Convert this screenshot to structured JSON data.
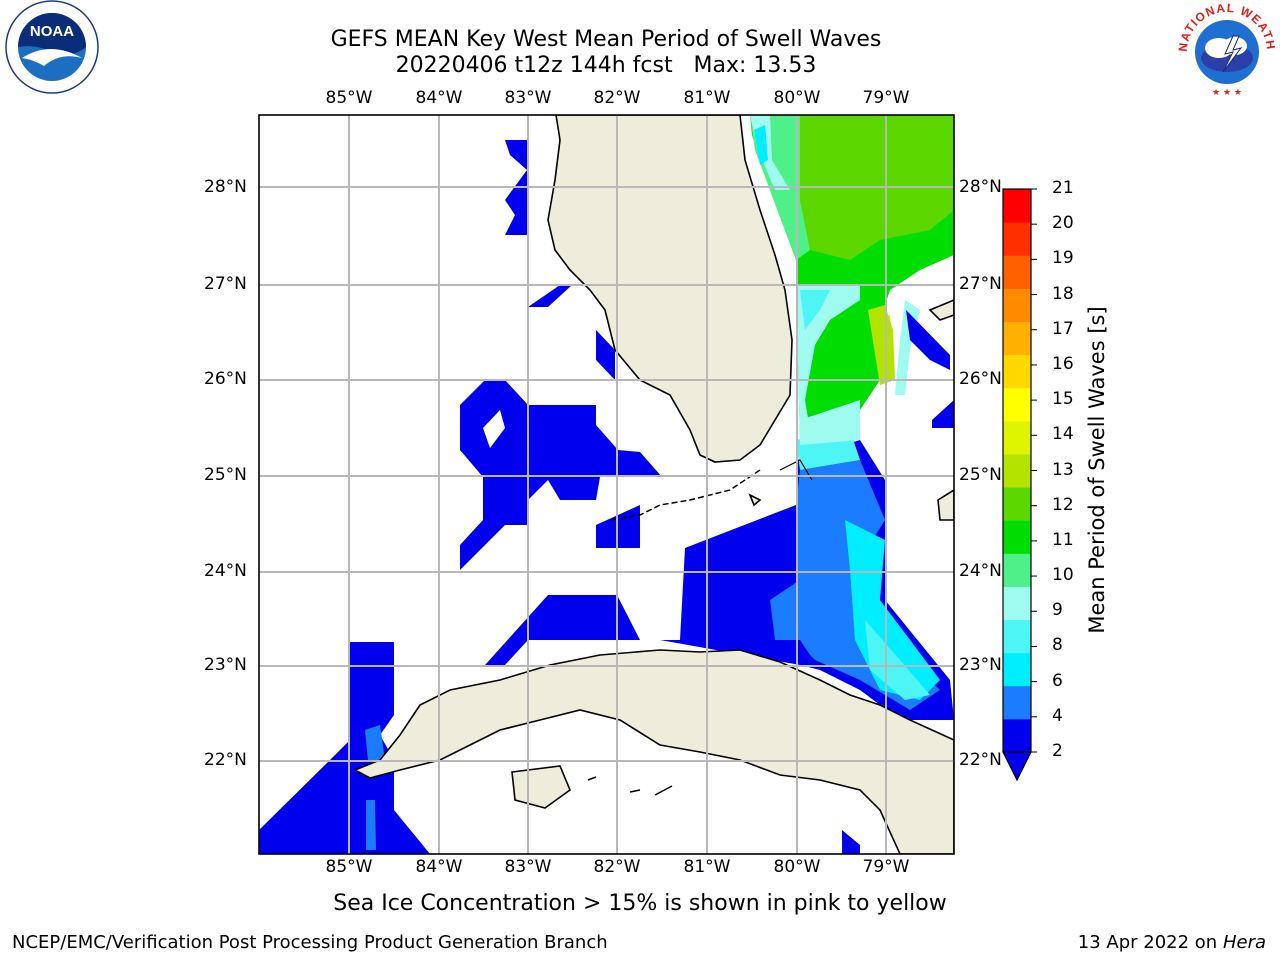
{
  "title_line1": "GEFS MEAN Key West Mean Period of Swell Waves",
  "title_line2": "20220406 t12z 144h fcst   Max: 13.53",
  "subtitle": "Sea Ice Concentration > 15% is shown in pink to yellow",
  "footer_left": "NCEP/EMC/Verification Post Processing Product Generation Branch",
  "footer_right_date": "13 Apr 2022 on",
  "footer_right_machine": "Hera",
  "logos": {
    "left": "noaa-logo",
    "right": "national-weather-service-logo",
    "right_text": "NATIONAL WEATHER SERVICE"
  },
  "colors": {
    "land": "#eeeddc",
    "grid": "#b8b8b8"
  },
  "lon_labels": [
    "85°W",
    "84°W",
    "83°W",
    "82°W",
    "81°W",
    "80°W",
    "79°W"
  ],
  "lat_labels": [
    "28°N",
    "27°N",
    "26°N",
    "25°N",
    "24°N",
    "23°N",
    "22°N"
  ],
  "colorbar": {
    "title": "Mean Period of Swell Waves [s]",
    "ticks": [
      "21",
      "20",
      "19",
      "18",
      "17",
      "16",
      "15",
      "14",
      "13",
      "12",
      "11",
      "10",
      "9",
      "8",
      "6",
      "4",
      "2"
    ],
    "colors": [
      "#0000ee",
      "#1c7cff",
      "#00eeff",
      "#4ef5f5",
      "#9ffbf0",
      "#4ff08a",
      "#00dd00",
      "#5cd800",
      "#b5e300",
      "#dff500",
      "#ffff00",
      "#ffd800",
      "#ffb000",
      "#ff8a00",
      "#ff6000",
      "#ff3000",
      "#ff0000"
    ]
  }
}
